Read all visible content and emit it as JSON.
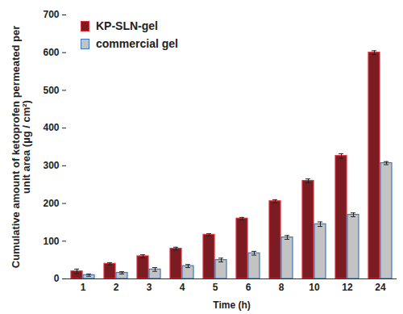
{
  "chart_data": {
    "type": "bar",
    "x_label": "Time (h)",
    "y_label": "Cumulative amount of ketoprofen permeated per unit area (µg / cm²)",
    "categories": [
      "1",
      "2",
      "3",
      "4",
      "5",
      "6",
      "8",
      "10",
      "12",
      "24"
    ],
    "series": [
      {
        "name": "KP-SLN-gel",
        "color": "#7b1b22",
        "values": [
          20,
          40,
          60,
          80,
          117,
          160,
          206,
          260,
          326,
          600
        ],
        "errors": [
          6,
          3,
          4,
          4,
          3,
          3,
          4,
          5,
          6,
          5
        ]
      },
      {
        "name": "commercial gel",
        "color": "#c3c3c3",
        "values": [
          10,
          16,
          25,
          34,
          50,
          68,
          110,
          145,
          170,
          307
        ],
        "errors": [
          3,
          3,
          5,
          4,
          5,
          5,
          5,
          6,
          5,
          4
        ]
      }
    ],
    "ylim": [
      0,
      700
    ],
    "yticks": [
      0,
      100,
      200,
      300,
      400,
      500,
      600,
      700
    ],
    "grid": false,
    "legend": "top-left"
  }
}
